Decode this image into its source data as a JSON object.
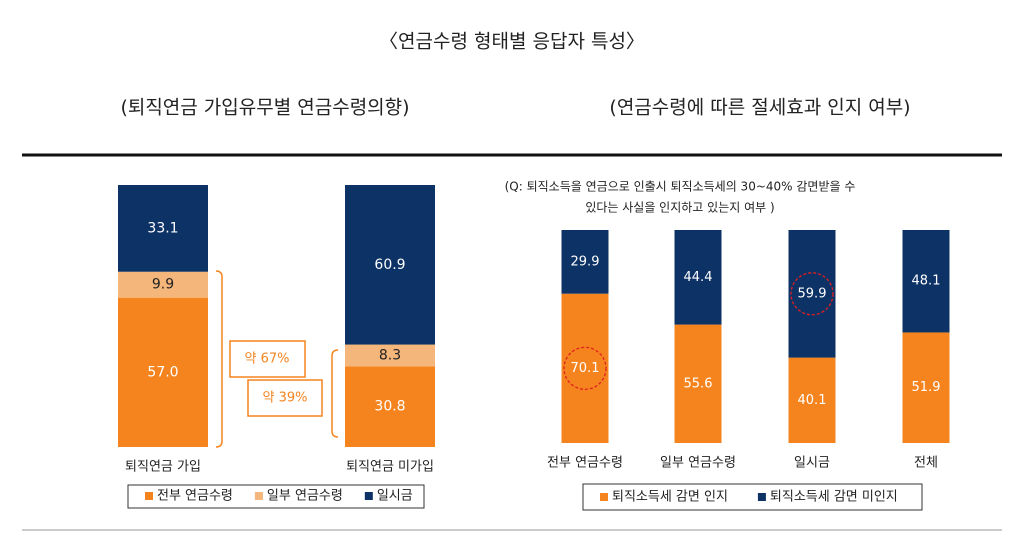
{
  "header": {
    "title": "〈연금수령 형태별 응답자 특성〉"
  },
  "chart_data": [
    {
      "type": "stacked-bar",
      "title": "(퇴직연금 가입유무별 연금수령의향)",
      "categories": [
        "퇴직연금 가입",
        "퇴직연금 미가입"
      ],
      "series": [
        {
          "name": "전부 연금수령",
          "color": "#f5841f",
          "values": [
            57.0,
            30.8
          ],
          "value_labels": [
            "57.0",
            "30.8"
          ]
        },
        {
          "name": "일부 연금수령",
          "color": "#f4b67a",
          "values": [
            9.9,
            8.3
          ],
          "value_labels": [
            "9.9",
            "8.3"
          ]
        },
        {
          "name": "일시금",
          "color": "#0d3266",
          "values": [
            33.1,
            60.9
          ],
          "value_labels": [
            "33.1",
            "60.9"
          ]
        }
      ],
      "annotations": [
        "약 67%",
        "약 39%"
      ]
    },
    {
      "type": "stacked-bar",
      "title": "(연금수령에 따른 절세효과 인지 여부)",
      "subtitle": [
        "(Q: 퇴직소득을 연금으로 인출시 퇴직소득세의 30~40% 감면받을 수",
        "있다는 사실을  인지하고 있는지 여부 )"
      ],
      "categories": [
        "전부 연금수령",
        "일부 연금수령",
        "일시금",
        "전체"
      ],
      "series": [
        {
          "name": "퇴직소득세 감면 인지",
          "color": "#f5841f",
          "values": [
            70.1,
            55.6,
            40.1,
            51.9
          ]
        },
        {
          "name": "퇴직소득세 감면 미인지",
          "color": "#0d3266",
          "values": [
            29.9,
            44.4,
            59.9,
            48.1
          ]
        }
      ]
    }
  ]
}
